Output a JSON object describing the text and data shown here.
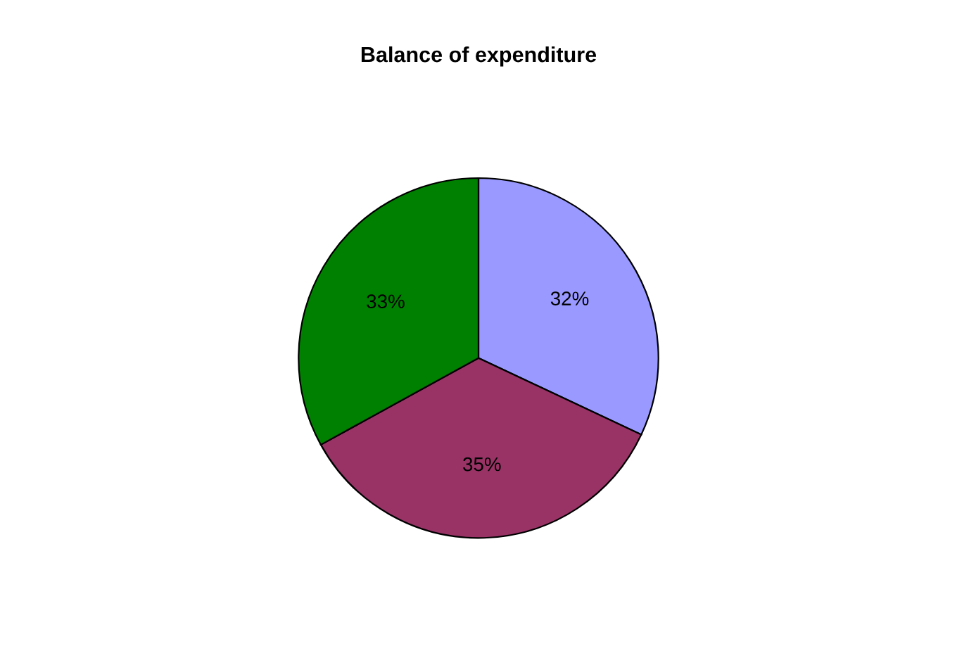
{
  "chart_data": {
    "type": "pie",
    "title": "Balance of expenditure",
    "categories": [
      null,
      null,
      null
    ],
    "values": [
      32,
      35,
      33
    ],
    "value_labels": [
      "32%",
      "35%",
      "33%"
    ],
    "colors": [
      "#9999ff",
      "#993366",
      "#008000"
    ]
  }
}
